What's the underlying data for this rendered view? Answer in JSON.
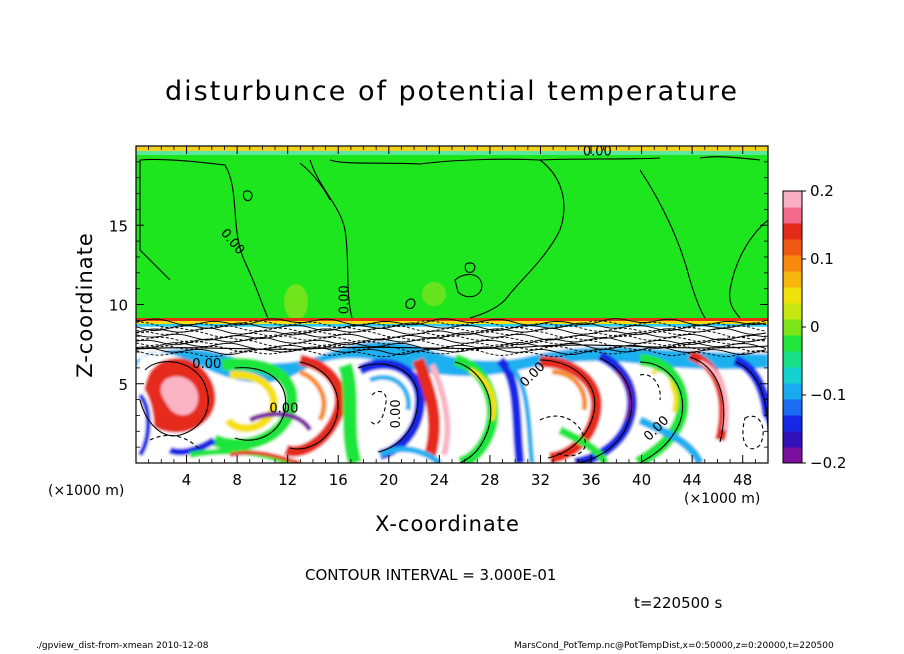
{
  "chart_data": {
    "type": "heatmap",
    "title": "disturbunce of potential temperature",
    "xlabel": "X-coordinate",
    "ylabel": "Z-coordinate",
    "x_unit_left": "(×1000 m)",
    "x_unit_right": "(×1000 m)",
    "xlim": [
      0,
      50
    ],
    "ylim": [
      0,
      20
    ],
    "xticks": [
      4,
      8,
      12,
      16,
      20,
      24,
      28,
      32,
      36,
      40,
      44,
      48
    ],
    "xtick_labels": [
      "4",
      "8",
      "12",
      "16",
      "20",
      "24",
      "28",
      "32",
      "36",
      "40",
      "44",
      "48"
    ],
    "yticks": [
      5,
      10,
      15
    ],
    "ytick_labels": [
      "5",
      "10",
      "15"
    ],
    "colorbar": {
      "range": [
        -0.2,
        0.2
      ],
      "ticks": [
        0.2,
        0.1,
        0,
        -0.1,
        -0.2
      ],
      "tick_labels": [
        "0.2",
        "0.1",
        "0",
        "−0.1",
        "−0.2"
      ],
      "colors": [
        "#7a0fa0",
        "#3212b8",
        "#1428e6",
        "#1b6cf2",
        "#1aaaf0",
        "#14d2cf",
        "#18e088",
        "#22e63c",
        "#7ce419",
        "#c8e812",
        "#f0e00c",
        "#f6b60e",
        "#f88a10",
        "#f05a14",
        "#e42a18",
        "#f46a8a",
        "#fab0c4"
      ]
    },
    "contour_labels": [
      {
        "text": "0.00",
        "x": 36.5,
        "z": 19.4,
        "rotate": 0
      },
      {
        "text": "0.00",
        "x": 7.4,
        "z": 13.8,
        "rotate": 50
      },
      {
        "text": "0.00",
        "x": 16.8,
        "z": 10.3,
        "rotate": -90
      },
      {
        "text": "0.00",
        "x": 5.6,
        "z": 6.0,
        "rotate": 0
      },
      {
        "text": "0.00",
        "x": 11.7,
        "z": 3.2,
        "rotate": 0
      },
      {
        "text": "0.00",
        "x": 20.9,
        "z": 3.1,
        "rotate": -90
      },
      {
        "text": "0.00",
        "x": 31.6,
        "z": 5.4,
        "rotate": -45
      },
      {
        "text": "0.00",
        "x": 41.4,
        "z": 2.0,
        "rotate": -45
      }
    ],
    "contour_interval_text": "CONTOUR INTERVAL = 3.000E-01",
    "time_text": "t=220500 s"
  },
  "footer": {
    "left": "./gpview_dist-from-xmean  2010-12-08",
    "right": "MarsCond_PotTemp.nc@PotTempDist,x=0:50000,z=0:20000,t=220500"
  },
  "colors": {
    "background": "#00e629",
    "frame": "#000000"
  }
}
